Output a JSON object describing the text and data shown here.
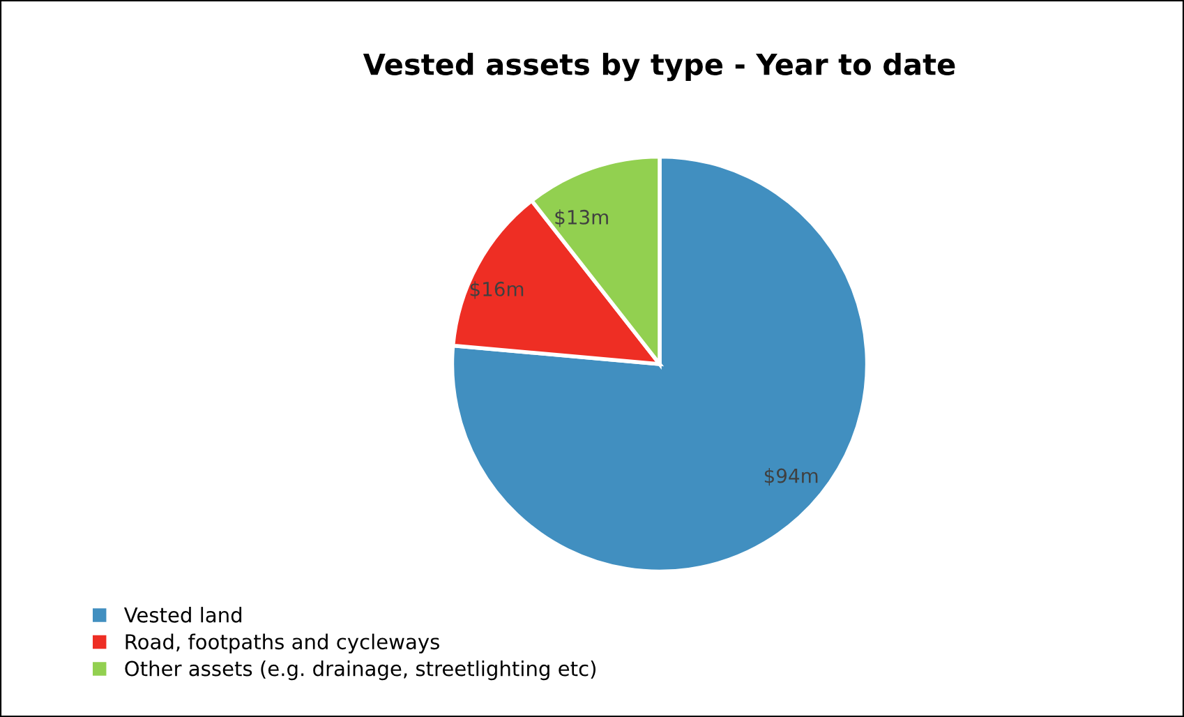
{
  "chart_data": {
    "type": "pie",
    "title": "Vested assets by type - Year to date",
    "categories": [
      "Vested land",
      "Road, footpaths and cycleways",
      "Other assets (e.g. drainage, streetlighting etc)"
    ],
    "values": [
      94,
      16,
      13
    ],
    "value_labels": [
      "$94m",
      "$16m",
      "$13m"
    ],
    "colors": [
      "#418fc0",
      "#ee2e24",
      "#92d050"
    ],
    "legend": "bottom left"
  }
}
